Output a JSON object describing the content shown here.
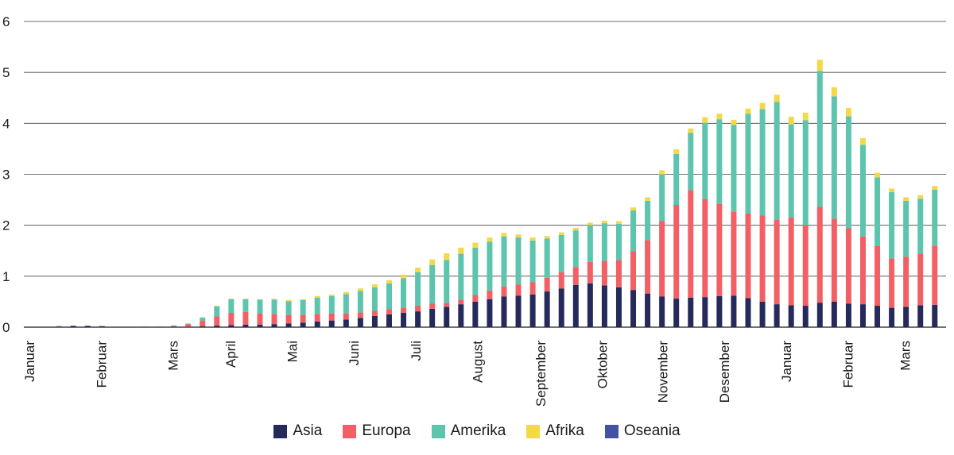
{
  "chart_data": {
    "type": "bar",
    "stacked": true,
    "title": "",
    "xlabel": "",
    "ylabel": "",
    "ylim": [
      0,
      6
    ],
    "yticks": [
      "0",
      "1",
      "2",
      "3",
      "4",
      "5",
      "6"
    ],
    "grid": true,
    "legend_position": "bottom",
    "month_labels": [
      "Januar",
      "Februar",
      "Mars",
      "April",
      "Mai",
      "Juni",
      "Juli",
      "August",
      "September",
      "Oktober",
      "November",
      "Desember",
      "Januar",
      "Februar",
      "Mars"
    ],
    "month_label_week": [
      0,
      5,
      10,
      14,
      18.3,
      22.6,
      26.9,
      31.2,
      35.6,
      39.9,
      44.1,
      48.4,
      52.7,
      57.0,
      61.0
    ],
    "series": [
      {
        "name": "Asia",
        "color": "#252a5a",
        "values": [
          0,
          0,
          0.01,
          0.02,
          0.02,
          0.02,
          0,
          0,
          0.01,
          0.01,
          0.01,
          0.01,
          0.02,
          0.03,
          0.04,
          0.05,
          0.05,
          0.06,
          0.07,
          0.09,
          0.11,
          0.13,
          0.15,
          0.18,
          0.22,
          0.25,
          0.28,
          0.31,
          0.36,
          0.4,
          0.45,
          0.5,
          0.55,
          0.6,
          0.62,
          0.64,
          0.7,
          0.76,
          0.83,
          0.86,
          0.82,
          0.78,
          0.73,
          0.66,
          0.6,
          0.56,
          0.58,
          0.59,
          0.61,
          0.62,
          0.57,
          0.5,
          0.45,
          0.43,
          0.42,
          0.48,
          0.5,
          0.46,
          0.45,
          0.42,
          0.38,
          0.4,
          0.43,
          0.44
        ]
      },
      {
        "name": "Europa",
        "color": "#f26065",
        "values": [
          0,
          0,
          0,
          0,
          0,
          0,
          0,
          0,
          0,
          0,
          0.01,
          0.05,
          0.11,
          0.18,
          0.24,
          0.25,
          0.22,
          0.2,
          0.17,
          0.15,
          0.15,
          0.14,
          0.12,
          0.11,
          0.1,
          0.1,
          0.1,
          0.11,
          0.1,
          0.08,
          0.09,
          0.13,
          0.17,
          0.2,
          0.22,
          0.24,
          0.27,
          0.32,
          0.35,
          0.42,
          0.48,
          0.54,
          0.76,
          1.05,
          1.48,
          1.84,
          2.11,
          1.92,
          1.81,
          1.64,
          1.66,
          1.69,
          1.66,
          1.72,
          1.58,
          1.88,
          1.63,
          1.48,
          1.33,
          1.17,
          0.97,
          0.98,
          1.01,
          1.16
        ]
      },
      {
        "name": "Amerika",
        "color": "#5dc4ae",
        "values": [
          0,
          0,
          0,
          0,
          0,
          0,
          0,
          0,
          0,
          0,
          0,
          0.01,
          0.06,
          0.2,
          0.27,
          0.25,
          0.27,
          0.28,
          0.27,
          0.29,
          0.32,
          0.34,
          0.38,
          0.42,
          0.46,
          0.51,
          0.58,
          0.66,
          0.76,
          0.84,
          0.9,
          0.93,
          0.96,
          0.98,
          0.92,
          0.82,
          0.77,
          0.73,
          0.72,
          0.72,
          0.74,
          0.71,
          0.8,
          0.77,
          0.92,
          1.0,
          1.12,
          1.5,
          1.66,
          1.71,
          1.96,
          2.09,
          2.31,
          1.83,
          2.06,
          2.67,
          2.4,
          2.2,
          1.8,
          1.35,
          1.3,
          1.1,
          1.08,
          1.1
        ]
      },
      {
        "name": "Afrika",
        "color": "#f5d84a",
        "values": [
          0,
          0,
          0,
          0,
          0,
          0,
          0,
          0,
          0,
          0,
          0,
          0,
          0,
          0.01,
          0.01,
          0.01,
          0.01,
          0.02,
          0.02,
          0.02,
          0.03,
          0.03,
          0.04,
          0.05,
          0.06,
          0.06,
          0.07,
          0.09,
          0.11,
          0.13,
          0.12,
          0.1,
          0.08,
          0.07,
          0.06,
          0.06,
          0.05,
          0.05,
          0.05,
          0.05,
          0.05,
          0.05,
          0.06,
          0.07,
          0.08,
          0.09,
          0.09,
          0.11,
          0.11,
          0.1,
          0.1,
          0.12,
          0.14,
          0.15,
          0.15,
          0.22,
          0.18,
          0.16,
          0.13,
          0.09,
          0.07,
          0.07,
          0.07,
          0.07
        ]
      },
      {
        "name": "Oseania",
        "color": "#4452a3",
        "values": [
          0,
          0,
          0.01,
          0.01,
          0.01,
          0,
          0,
          0,
          0,
          0,
          0.01,
          0,
          0,
          0,
          0,
          0,
          0,
          0,
          0,
          0,
          0,
          0,
          0,
          0,
          0,
          0,
          0,
          0,
          0,
          0,
          0,
          0,
          0,
          0,
          0,
          0,
          0,
          0,
          0,
          0,
          0,
          0,
          0,
          0,
          0,
          0,
          0,
          0,
          0,
          0,
          0,
          0,
          0,
          0,
          0,
          0,
          0,
          0,
          0,
          0,
          0,
          0,
          0,
          0
        ]
      }
    ]
  }
}
